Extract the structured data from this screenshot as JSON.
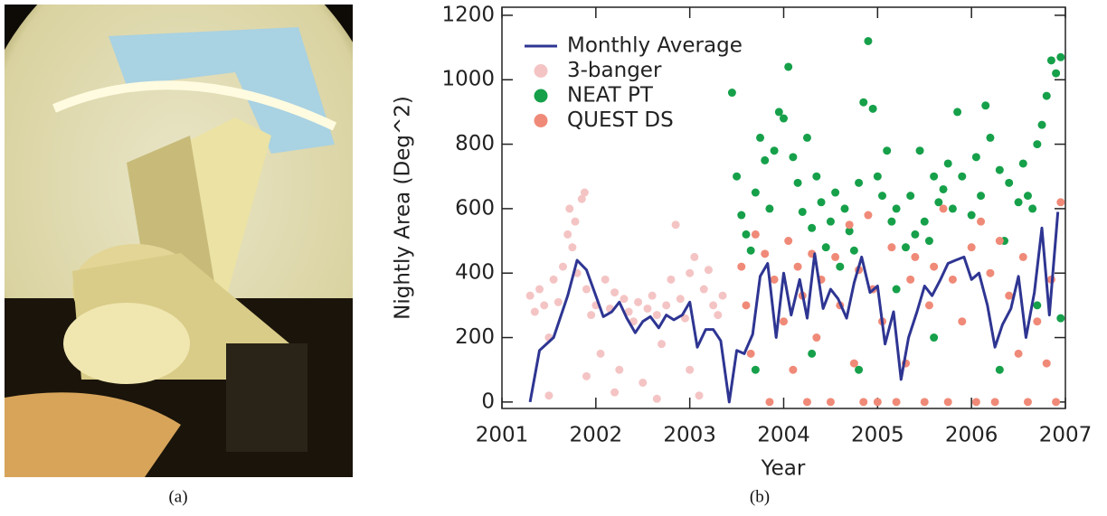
{
  "figure": {
    "captions": [
      "(a)",
      "(b)"
    ]
  },
  "chart_data": {
    "type": "scatter",
    "x_label": "Year",
    "y_label": "Nightly Area (Deg^2)",
    "xlim": [
      2001,
      2007
    ],
    "xticks": [
      2001,
      2002,
      2003,
      2004,
      2005,
      2006,
      2007
    ],
    "ylim": [
      -20,
      1225
    ],
    "yticks": [
      0,
      200,
      400,
      600,
      800,
      1000,
      1200
    ],
    "legend": "upper-left",
    "series": [
      {
        "name": "Monthly Average",
        "type": "line",
        "color": "#2e3592",
        "x": [
          2001.3,
          2001.4,
          2001.55,
          2001.7,
          2001.8,
          2001.9,
          2002.0,
          2002.08,
          2002.17,
          2002.25,
          2002.33,
          2002.42,
          2002.5,
          2002.58,
          2002.67,
          2002.75,
          2002.83,
          2002.92,
          2003.0,
          2003.08,
          2003.17,
          2003.25,
          2003.33,
          2003.42,
          2003.5,
          2003.58,
          2003.67,
          2003.75,
          2003.83,
          2003.92,
          2004.0,
          2004.08,
          2004.17,
          2004.25,
          2004.33,
          2004.42,
          2004.5,
          2004.58,
          2004.67,
          2004.75,
          2004.83,
          2004.92,
          2005.0,
          2005.08,
          2005.17,
          2005.25,
          2005.33,
          2005.42,
          2005.5,
          2005.58,
          2005.67,
          2005.75,
          2005.83,
          2005.92,
          2006.0,
          2006.08,
          2006.17,
          2006.25,
          2006.33,
          2006.42,
          2006.5,
          2006.58,
          2006.67,
          2006.75,
          2006.83,
          2006.92
        ],
        "values": [
          0,
          160,
          200,
          330,
          440,
          410,
          330,
          265,
          280,
          310,
          260,
          215,
          250,
          265,
          230,
          270,
          255,
          270,
          310,
          170,
          225,
          225,
          190,
          0,
          160,
          150,
          210,
          390,
          430,
          200,
          400,
          270,
          380,
          260,
          460,
          290,
          350,
          320,
          260,
          370,
          450,
          340,
          360,
          180,
          280,
          70,
          200,
          280,
          360,
          330,
          380,
          430,
          440,
          450,
          380,
          400,
          300,
          170,
          240,
          290,
          390,
          200,
          340,
          540,
          270,
          590
        ]
      },
      {
        "name": "3-banger",
        "type": "scatter",
        "color": "#f4c4c4",
        "x": [
          2001.3,
          2001.35,
          2001.4,
          2001.45,
          2001.5,
          2001.55,
          2001.6,
          2001.65,
          2001.7,
          2001.72,
          2001.75,
          2001.78,
          2001.8,
          2001.85,
          2001.88,
          2001.9,
          2001.95,
          2002.0,
          2002.05,
          2002.1,
          2002.15,
          2002.2,
          2002.25,
          2002.3,
          2002.35,
          2002.4,
          2002.45,
          2002.5,
          2002.55,
          2002.6,
          2002.65,
          2002.7,
          2002.75,
          2002.8,
          2002.85,
          2002.9,
          2002.95,
          2003.0,
          2003.05,
          2003.1,
          2003.15,
          2003.2,
          2003.25,
          2003.3,
          2003.35,
          2001.5,
          2001.9,
          2002.2,
          2002.65,
          2003.0
        ],
        "values": [
          330,
          280,
          350,
          300,
          200,
          380,
          310,
          420,
          520,
          600,
          480,
          560,
          400,
          630,
          650,
          350,
          270,
          300,
          150,
          380,
          290,
          340,
          100,
          320,
          280,
          250,
          310,
          60,
          290,
          330,
          270,
          180,
          300,
          380,
          550,
          320,
          260,
          400,
          450,
          20,
          350,
          410,
          300,
          270,
          330,
          20,
          80,
          30,
          10,
          100
        ]
      },
      {
        "name": "NEAT PT",
        "type": "scatter",
        "color": "#16a04a",
        "x": [
          2003.45,
          2003.5,
          2003.55,
          2003.6,
          2003.65,
          2003.7,
          2003.75,
          2003.8,
          2003.85,
          2003.9,
          2003.95,
          2004.0,
          2004.05,
          2004.1,
          2004.15,
          2004.2,
          2004.25,
          2004.3,
          2004.35,
          2004.4,
          2004.45,
          2004.5,
          2004.55,
          2004.6,
          2004.65,
          2004.7,
          2004.75,
          2004.8,
          2004.85,
          2004.9,
          2004.95,
          2005.0,
          2005.05,
          2005.1,
          2005.15,
          2005.2,
          2005.3,
          2005.35,
          2005.4,
          2005.45,
          2005.5,
          2005.55,
          2005.6,
          2005.65,
          2005.7,
          2005.75,
          2005.8,
          2005.85,
          2005.9,
          2006.0,
          2006.05,
          2006.1,
          2006.15,
          2006.2,
          2006.3,
          2006.35,
          2006.4,
          2006.5,
          2006.55,
          2006.6,
          2006.65,
          2006.7,
          2006.75,
          2006.8,
          2006.85,
          2006.9,
          2006.95,
          2004.3,
          2004.8,
          2005.6,
          2006.3,
          2006.7,
          2003.7,
          2005.2,
          2006.95
        ],
        "values": [
          960,
          700,
          580,
          520,
          470,
          650,
          820,
          750,
          600,
          780,
          900,
          880,
          1040,
          760,
          680,
          590,
          820,
          540,
          700,
          620,
          480,
          560,
          650,
          420,
          600,
          530,
          470,
          680,
          930,
          1120,
          910,
          700,
          640,
          780,
          560,
          600,
          480,
          640,
          520,
          780,
          560,
          500,
          700,
          620,
          660,
          740,
          600,
          900,
          700,
          580,
          760,
          640,
          920,
          820,
          720,
          500,
          680,
          620,
          740,
          640,
          600,
          800,
          860,
          950,
          1060,
          1020,
          1070,
          150,
          100,
          200,
          100,
          300,
          100,
          350,
          260
        ]
      },
      {
        "name": "QUEST DS",
        "type": "scatter",
        "color": "#f08a78",
        "x": [
          2003.55,
          2003.6,
          2003.65,
          2003.7,
          2003.8,
          2003.85,
          2003.9,
          2004.0,
          2004.05,
          2004.1,
          2004.15,
          2004.2,
          2004.25,
          2004.3,
          2004.35,
          2004.4,
          2004.5,
          2004.55,
          2004.6,
          2004.7,
          2004.75,
          2004.8,
          2004.85,
          2004.9,
          2004.95,
          2005.0,
          2005.05,
          2005.15,
          2005.2,
          2005.3,
          2005.35,
          2005.4,
          2005.5,
          2005.55,
          2005.6,
          2005.7,
          2005.75,
          2005.8,
          2005.9,
          2006.0,
          2006.05,
          2006.1,
          2006.2,
          2006.25,
          2006.3,
          2006.4,
          2006.5,
          2006.55,
          2006.6,
          2006.7,
          2006.8,
          2006.85,
          2006.9,
          2006.95
        ],
        "values": [
          420,
          300,
          150,
          520,
          460,
          0,
          380,
          250,
          500,
          100,
          420,
          330,
          0,
          460,
          200,
          380,
          0,
          450,
          300,
          550,
          120,
          410,
          0,
          580,
          350,
          0,
          250,
          480,
          0,
          120,
          380,
          450,
          0,
          300,
          420,
          600,
          0,
          380,
          250,
          480,
          0,
          560,
          400,
          0,
          500,
          330,
          150,
          450,
          0,
          250,
          120,
          380,
          0,
          620
        ]
      }
    ]
  }
}
